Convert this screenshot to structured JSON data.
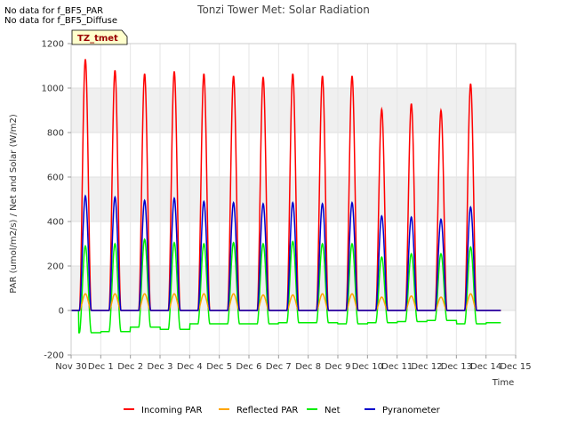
{
  "notices": [
    "No data for f_BF5_PAR",
    "No data for f_BF5_Diffuse"
  ],
  "chart_data": {
    "type": "line",
    "title": "Tonzi Tower Met: Solar Radiation",
    "xlabel": "Time",
    "ylabel": "PAR (umol/m2/s) / Net and Solar (W/m2)",
    "xlim": [
      0,
      15
    ],
    "ylim": [
      -200,
      1200
    ],
    "grid": true,
    "legend_position": "bottom",
    "annotation": "TZ_tmet",
    "x_ticks": [
      0,
      1,
      2,
      3,
      4,
      5,
      6,
      7,
      8,
      9,
      10,
      11,
      12,
      13,
      14,
      15
    ],
    "x_tick_labels": [
      "Nov 30",
      "Dec 1",
      "Dec 2",
      "Dec 3",
      "Dec 4",
      "Dec 5",
      "Dec 6",
      "Dec 7",
      "Dec 8",
      "Dec 9",
      "Dec 10",
      "Dec 11",
      "Dec 12",
      "Dec 13",
      "Dec 14",
      "Dec 15"
    ],
    "y_ticks": [
      -200,
      0,
      200,
      400,
      600,
      800,
      1000,
      1200
    ],
    "y_tick_labels": [
      "-200",
      "0",
      "200",
      "400",
      "600",
      "800",
      "1000",
      "1200"
    ],
    "series": [
      {
        "name": "Incoming PAR",
        "color": "#ff0000",
        "daily_peaks": [
          1130,
          1080,
          1065,
          1075,
          1065,
          1055,
          1050,
          1065,
          1055,
          1055,
          905,
          930,
          900,
          1020
        ],
        "night_value": 0
      },
      {
        "name": "Reflected PAR",
        "color": "#ffa500",
        "daily_peaks": [
          75,
          75,
          75,
          75,
          75,
          75,
          70,
          70,
          75,
          75,
          60,
          65,
          60,
          75
        ],
        "night_value": 0
      },
      {
        "name": "Net",
        "color": "#00ee00",
        "daily_peaks": [
          290,
          300,
          320,
          305,
          300,
          305,
          300,
          310,
          300,
          300,
          240,
          255,
          255,
          285
        ],
        "night_values": [
          -100,
          -95,
          -75,
          -85,
          -60,
          -60,
          -60,
          -55,
          -55,
          -60,
          -55,
          -50,
          -45,
          -60,
          -55
        ]
      },
      {
        "name": "Pyranometer",
        "color": "#0000cc",
        "daily_peaks": [
          515,
          510,
          495,
          505,
          490,
          485,
          480,
          485,
          480,
          485,
          425,
          420,
          410,
          465
        ],
        "night_value": 0
      }
    ]
  }
}
